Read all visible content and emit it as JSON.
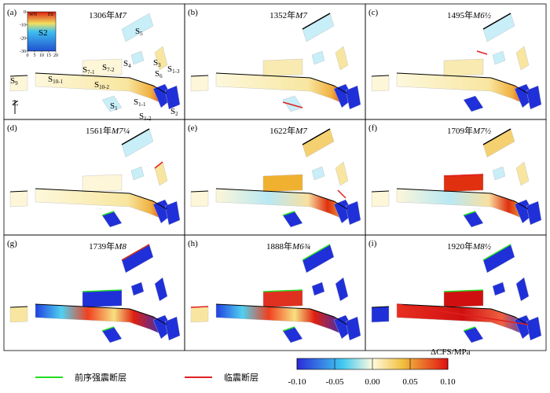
{
  "panels": [
    {
      "label": "(a)",
      "year": "1306年",
      "magnitude": "M7"
    },
    {
      "label": "(b)",
      "year": "1352年",
      "magnitude": "M7"
    },
    {
      "label": "(c)",
      "year": "1495年",
      "magnitude": "M6½"
    },
    {
      "label": "(d)",
      "year": "1561年",
      "magnitude": "M7¼"
    },
    {
      "label": "(e)",
      "year": "1622年",
      "magnitude": "M7"
    },
    {
      "label": "(f)",
      "year": "1709年",
      "magnitude": "M7½"
    },
    {
      "label": "(g)",
      "year": "1739年",
      "magnitude": "M8"
    },
    {
      "label": "(h)",
      "year": "1888年",
      "magnitude": "M6¾"
    },
    {
      "label": "(i)",
      "year": "1920年",
      "magnitude": "M8½"
    }
  ],
  "fault_labels": [
    {
      "base": "S",
      "sub": "9"
    },
    {
      "base": "S",
      "sub": "10-1"
    },
    {
      "base": "S",
      "sub": "10-2"
    },
    {
      "base": "S",
      "sub": "7-1"
    },
    {
      "base": "S",
      "sub": "7-2"
    },
    {
      "base": "S",
      "sub": "4"
    },
    {
      "base": "S",
      "sub": "5"
    },
    {
      "base": "S",
      "sub": "6"
    },
    {
      "base": "S",
      "sub": "3"
    },
    {
      "base": "S",
      "sub": "1"
    },
    {
      "base": "S",
      "sub": "1-1"
    },
    {
      "base": "S",
      "sub": "1-2"
    },
    {
      "base": "S",
      "sub": "1-3"
    },
    {
      "base": "S",
      "sub": "2"
    }
  ],
  "north": "N",
  "inset": {
    "left": "WN",
    "right": "ES",
    "fault": "S2",
    "xticks": [
      0,
      5,
      10,
      15,
      20
    ],
    "yticks": [
      0,
      -10,
      -20,
      -30
    ],
    "xlim": [
      0,
      20
    ],
    "ylim": [
      -30,
      0
    ]
  },
  "legend": {
    "foreshock_fault": "前序强震断层",
    "imminent_fault": "临震断层"
  },
  "colorbar": {
    "label": "ΔCFS/MPa",
    "range": [
      -0.1,
      0.1
    ],
    "ticks": [
      {
        "value": -0.1,
        "label": "-0.10"
      },
      {
        "value": -0.05,
        "label": "-0.05"
      },
      {
        "value": 0,
        "label": "0.00"
      },
      {
        "value": 0.05,
        "label": "0.05"
      },
      {
        "value": 0.1,
        "label": "0.10"
      }
    ]
  }
}
